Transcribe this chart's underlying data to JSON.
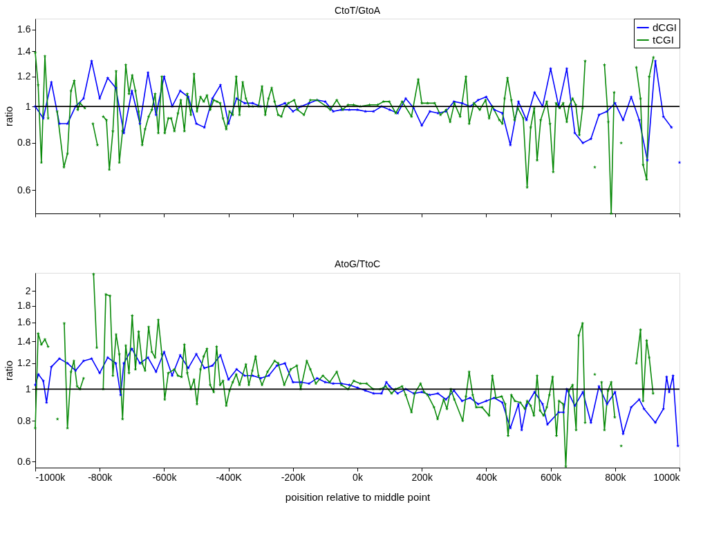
{
  "chart_data": [
    {
      "type": "line",
      "title": "CtoT/GtoA",
      "ylabel": "ratio",
      "xlim": [
        -1000,
        1000
      ],
      "xticks": [
        {
          "value": -1000,
          "label": null
        },
        {
          "value": -800,
          "label": null
        },
        {
          "value": -600,
          "label": null
        },
        {
          "value": -400,
          "label": null
        },
        {
          "value": -200,
          "label": null
        },
        {
          "value": 0,
          "label": null
        },
        {
          "value": 200,
          "label": null
        },
        {
          "value": 400,
          "label": null
        },
        {
          "value": 600,
          "label": null
        },
        {
          "value": 800,
          "label": null
        },
        {
          "value": 1000,
          "label": null
        }
      ],
      "ylim": [
        0.52,
        1.71
      ],
      "yticks": [
        0.6,
        0.8,
        1,
        1.2,
        1.4,
        1.6
      ],
      "log": true,
      "tick_labels": "y",
      "legend": "top right",
      "marker": "star",
      "line_style": "solid",
      "ref_lines": [
        {
          "axis": "y",
          "value": 1,
          "color": "#000000"
        }
      ],
      "series": [
        {
          "name": "dCGI",
          "color": "#0000ff",
          "x": [
            -1000,
            -975,
            -950,
            -925,
            -900,
            -875,
            -850,
            -825,
            -800,
            -775,
            -750,
            -725,
            -700,
            -675,
            -650,
            -625,
            -600,
            -575,
            -550,
            -525,
            -500,
            -475,
            -450,
            -425,
            -400,
            -375,
            -350,
            -325,
            -300,
            -275,
            -250,
            -225,
            -200,
            -175,
            -150,
            -125,
            -100,
            -75,
            -50,
            -25,
            0,
            25,
            50,
            75,
            100,
            125,
            150,
            175,
            200,
            225,
            250,
            275,
            300,
            325,
            350,
            375,
            400,
            425,
            450,
            475,
            500,
            525,
            550,
            575,
            600,
            625,
            650,
            675,
            700,
            725,
            750,
            775,
            800,
            825,
            850,
            875,
            900,
            925,
            950,
            975,
            988,
            1000
          ],
          "values": [
            1.0,
            0.93,
            1.16,
            0.9,
            0.9,
            1.0,
            1.05,
            1.32,
            1.05,
            1.19,
            1.12,
            0.85,
            1.1,
            0.9,
            1.23,
            0.95,
            1.2,
            1.0,
            1.1,
            1.06,
            0.9,
            0.88,
            1.05,
            1.14,
            0.9,
            1.05,
            1.02,
            1.02,
            1.0,
            1.0,
            1.0,
            1.02,
            0.97,
            1.0,
            1.02,
            1.04,
            1.03,
            0.97,
            0.98,
            0.98,
            0.98,
            0.97,
            0.97,
            1.0,
            0.98,
            0.96,
            1.05,
            0.99,
            0.89,
            0.97,
            0.96,
            0.97,
            1.03,
            1.02,
            1.0,
            1.04,
            1.06,
            0.98,
            0.96,
            0.79,
            1.03,
            0.92,
            1.09,
            1.0,
            1.26,
            1.0,
            1.26,
            0.85,
            0.8,
            0.82,
            0.95,
            0.97,
            1.02,
            0.92,
            1.06,
            0.92,
            0.72,
            1.32,
            0.94,
            0.88,
            null,
            0.71
          ]
        },
        {
          "name": "tCGI",
          "color": "#0a8a0a",
          "x": [
            -1000,
            -991,
            -981,
            -970,
            -960,
            -946,
            -932,
            -911,
            -900,
            -889,
            -879,
            -868,
            -861,
            -846,
            -833,
            -821,
            -807,
            -798,
            -789,
            -779,
            -770,
            -759,
            -749,
            -739,
            -729,
            -719,
            -709,
            -699,
            -689,
            -679,
            -668,
            -659,
            -648,
            -638,
            -628,
            -618,
            -607,
            -598,
            -587,
            -578,
            -568,
            -557,
            -548,
            -537,
            -528,
            -517,
            -507,
            -498,
            -487,
            -477,
            -467,
            -457,
            -446,
            -436,
            -426,
            -417,
            -407,
            -397,
            -387,
            -376,
            -366,
            -356,
            -346,
            -336,
            -325,
            -307,
            -296,
            -286,
            -276,
            -266,
            -257,
            -246,
            -236,
            -225,
            -214,
            -196,
            -186,
            -166,
            -146,
            -125,
            -96,
            -84,
            -64,
            -46,
            -29,
            -12,
            9,
            38,
            63,
            81,
            99,
            119,
            139,
            168,
            189,
            200,
            218,
            240,
            258,
            276,
            288,
            301,
            319,
            337,
            347,
            362,
            380,
            398,
            409,
            419,
            441,
            450,
            457,
            466,
            478,
            488,
            498,
            515,
            527,
            538,
            549,
            558,
            569,
            588,
            598,
            608,
            617,
            628,
            639,
            650,
            657,
            668,
            678,
            689,
            699,
            707,
            722,
            737,
            752,
            767,
            779,
            788,
            797,
            808,
            819,
            842,
            866,
            879,
            887,
            898,
            906,
            919
          ],
          "values": [
            1.39,
            1.14,
            0.71,
            1.36,
            0.93,
            null,
            0.97,
            0.69,
            0.75,
            1.1,
            1.17,
            0.98,
            1.02,
            0.99,
            null,
            0.9,
            0.79,
            null,
            0.94,
            0.92,
            0.68,
            0.86,
            1.24,
            0.71,
            0.86,
            1.29,
            1.08,
            1.21,
            1.1,
            0.97,
            0.79,
            0.87,
            0.94,
            0.98,
            1.08,
            0.85,
            1.2,
            0.85,
            0.93,
            0.93,
            0.86,
            0.96,
            1.04,
            0.86,
            1.08,
            0.95,
            1.22,
            0.97,
            1.06,
            1.03,
            1.07,
            0.98,
            1.04,
            1.03,
            1.02,
            0.93,
            0.87,
            0.97,
            0.95,
            1.2,
            0.95,
            1.16,
            1.05,
            1.0,
            1.0,
            1.0,
            1.13,
            0.95,
            1.05,
            1.12,
            1.03,
            0.95,
            0.94,
            1.0,
            1.02,
            1.04,
            0.98,
            0.95,
            1.04,
            1.04,
            1.0,
            0.98,
            1.04,
            0.98,
            1.01,
            1.01,
            1.0,
            1.01,
            1.01,
            1.03,
            1.03,
            0.96,
            1.03,
            0.94,
            1.18,
            1.02,
            1.02,
            1.02,
            0.95,
            0.98,
            0.91,
            1.02,
            0.94,
            1.2,
            0.9,
            1.02,
            0.98,
            1.04,
            0.93,
            1.0,
            0.92,
            0.9,
            1.05,
            1.19,
            1.04,
            0.92,
            0.99,
            0.93,
            0.61,
            0.88,
            0.99,
            0.72,
            0.92,
            1.03,
            0.9,
            0.67,
            1.02,
            0.99,
            1.02,
            0.91,
            1.0,
            1.05,
            1.01,
            0.84,
            0.99,
            1.32,
            null,
            0.69,
            null,
            1.29,
            0.91,
            0.52,
            1.09,
            null,
            0.8,
            null,
            1.27,
            1.05,
            0.7,
            0.64,
            1.2,
            1.35
          ]
        }
      ]
    },
    {
      "type": "line",
      "title": "AtoG/TtoC",
      "xlabel": "poisition relative to middle point",
      "ylabel": "ratio",
      "xlim": [
        -1000,
        1000
      ],
      "xticks": [
        {
          "value": -1000,
          "label": "-1000k"
        },
        {
          "value": -800,
          "label": "-800k"
        },
        {
          "value": -600,
          "label": "-600k"
        },
        {
          "value": -400,
          "label": "-400K"
        },
        {
          "value": -200,
          "label": "-200k"
        },
        {
          "value": 0,
          "label": "0k"
        },
        {
          "value": 200,
          "label": "200k"
        },
        {
          "value": 400,
          "label": "400k"
        },
        {
          "value": 600,
          "label": "600k"
        },
        {
          "value": 800,
          "label": "800k"
        },
        {
          "value": 1000,
          "label": "1000k"
        }
      ],
      "ylim": [
        0.575,
        2.27
      ],
      "yticks": [
        0.6,
        0.8,
        1,
        1.2,
        1.4,
        1.6,
        1.8,
        2
      ],
      "log": true,
      "marker": "star",
      "line_style": "solid",
      "ref_lines": [
        {
          "axis": "y",
          "value": 1,
          "color": "#000000"
        }
      ],
      "series": [
        {
          "color": "#0000ff",
          "x": [
            -1000,
            -990,
            -975,
            -965,
            -950,
            -925,
            -900,
            -875,
            -850,
            -825,
            -800,
            -775,
            -750,
            -735,
            -725,
            -700,
            -675,
            -650,
            -625,
            -600,
            -575,
            -550,
            -525,
            -500,
            -475,
            -450,
            -425,
            -400,
            -375,
            -350,
            -325,
            -300,
            -275,
            -250,
            -225,
            -200,
            -175,
            -150,
            -125,
            -100,
            -75,
            -50,
            -25,
            0,
            25,
            50,
            75,
            90,
            100,
            125,
            150,
            175,
            200,
            225,
            250,
            275,
            300,
            325,
            350,
            375,
            400,
            425,
            450,
            475,
            500,
            510,
            525,
            550,
            575,
            590,
            625,
            640,
            650,
            675,
            700,
            725,
            750,
            775,
            800,
            825,
            850,
            875,
            890,
            925,
            950,
            960,
            968,
            980,
            995
          ],
          "values": [
            1.03,
            1.11,
            1.06,
            0.91,
            1.17,
            1.24,
            1.2,
            1.14,
            1.22,
            1.24,
            1.12,
            1.25,
            1.2,
            0.96,
            1.2,
            1.33,
            1.2,
            1.25,
            1.13,
            1.3,
            1.1,
            1.27,
            1.16,
            1.28,
            1.16,
            1.18,
            1.27,
            1.07,
            1.15,
            1.1,
            1.1,
            1.08,
            1.1,
            1.18,
            1.2,
            1.05,
            1.05,
            1.04,
            1.08,
            1.05,
            1.04,
            1.04,
            1.03,
            1.01,
            0.99,
            0.97,
            0.97,
            1.05,
            1.02,
            0.97,
            1.0,
            0.97,
            0.98,
            0.96,
            0.97,
            0.93,
            0.99,
            0.92,
            0.94,
            0.9,
            0.92,
            0.94,
            0.91,
            0.76,
            0.9,
            0.75,
            0.89,
            0.98,
            0.9,
            0.78,
            0.85,
            0.85,
            1.0,
            0.89,
            0.98,
            0.79,
            1.02,
            0.9,
            0.98,
            0.73,
            0.88,
            0.93,
            0.87,
            0.79,
            0.87,
            1.09,
            0.98,
            1.1,
            0.67
          ]
        },
        {
          "color": "#0a8a0a",
          "x": [
            -1000,
            -991,
            -981,
            -970,
            -960,
            -946,
            -931,
            -920,
            -910,
            -900,
            -889,
            -880,
            -870,
            -861,
            -850,
            -835,
            -819,
            -809,
            -799,
            -789,
            -781,
            -768,
            -759,
            -749,
            -739,
            -729,
            -719,
            -709,
            -699,
            -689,
            -679,
            -668,
            -659,
            -648,
            -638,
            -628,
            -618,
            -607,
            -598,
            -587,
            -568,
            -557,
            -546,
            -537,
            -528,
            -517,
            -507,
            -498,
            -487,
            -477,
            -467,
            -457,
            -446,
            -437,
            -426,
            -417,
            -407,
            -397,
            -387,
            -376,
            -366,
            -346,
            -337,
            -326,
            -316,
            -307,
            -296,
            -279,
            -257,
            -246,
            -227,
            -207,
            -188,
            -176,
            -157,
            -146,
            -129,
            -107,
            -86,
            -64,
            -50,
            -29,
            -11,
            9,
            29,
            49,
            71,
            88,
            106,
            119,
            139,
            150,
            168,
            178,
            196,
            207,
            218,
            238,
            249,
            268,
            278,
            290,
            301,
            327,
            337,
            347,
            358,
            369,
            387,
            409,
            419,
            430,
            448,
            459,
            468,
            478,
            489,
            506,
            520,
            527,
            538,
            548,
            558,
            567,
            578,
            588,
            596,
            606,
            618,
            626,
            639,
            647,
            657,
            668,
            679,
            687,
            699,
            707,
            722,
            737,
            752,
            758,
            767,
            778,
            788,
            799,
            809,
            819,
            842,
            866,
            879,
            887,
            898,
            906,
            918
          ],
          "values": [
            0.76,
            1.48,
            1.37,
            1.42,
            1.35,
            null,
            0.81,
            null,
            1.59,
            0.76,
            1.13,
            1.22,
            1.02,
            1.0,
            1.08,
            null,
            2.25,
            1.34,
            null,
            1.0,
            1.95,
            1.93,
            1.1,
            1.47,
            1.28,
            0.81,
            1.36,
            1.12,
            1.68,
            1.15,
            1.5,
            1.2,
            1.14,
            1.55,
            1.3,
            1.25,
            1.63,
            1.28,
            0.93,
            1.12,
            1.15,
            1.1,
            1.09,
            1.37,
            1.12,
            1.0,
            1.07,
            0.9,
            1.15,
            1.26,
            1.33,
            1.03,
            0.98,
            1.35,
            1.03,
            1.06,
            0.89,
            0.99,
            1.05,
            1.11,
            1.03,
            1.19,
            1.03,
            1.14,
            1.26,
            1.1,
            1.03,
            1.13,
            1.22,
            1.2,
            1.03,
            1.15,
            1.18,
            1.0,
            1.22,
            1.15,
            1.04,
            1.1,
            1.05,
            1.13,
            1.03,
            1.0,
            1.06,
            1.04,
            1.04,
            1.0,
            1.0,
            1.02,
            0.97,
            1.0,
            1.02,
            0.96,
            0.85,
            0.97,
            1.04,
            0.98,
            0.96,
            0.88,
            0.81,
            0.93,
            0.87,
            1.0,
            0.93,
            0.8,
            0.95,
            1.13,
            0.96,
            0.88,
            0.88,
            0.83,
            1.1,
            0.94,
            0.95,
            0.9,
            0.72,
            0.96,
            0.92,
            0.91,
            0.87,
            0.92,
            0.89,
            0.83,
            1.1,
            0.86,
            0.83,
            0.88,
            0.96,
            1.09,
            0.72,
            0.92,
            0.9,
            0.58,
            0.99,
            1.03,
            0.75,
            1.46,
            1.59,
            0.79,
            null,
            1.11,
            null,
            1.05,
            0.75,
            0.99,
            1.05,
            0.82,
            null,
            0.67,
            null,
            1.2,
            1.52,
            0.92,
            1.41,
            1.25,
            0.97
          ]
        }
      ]
    }
  ]
}
